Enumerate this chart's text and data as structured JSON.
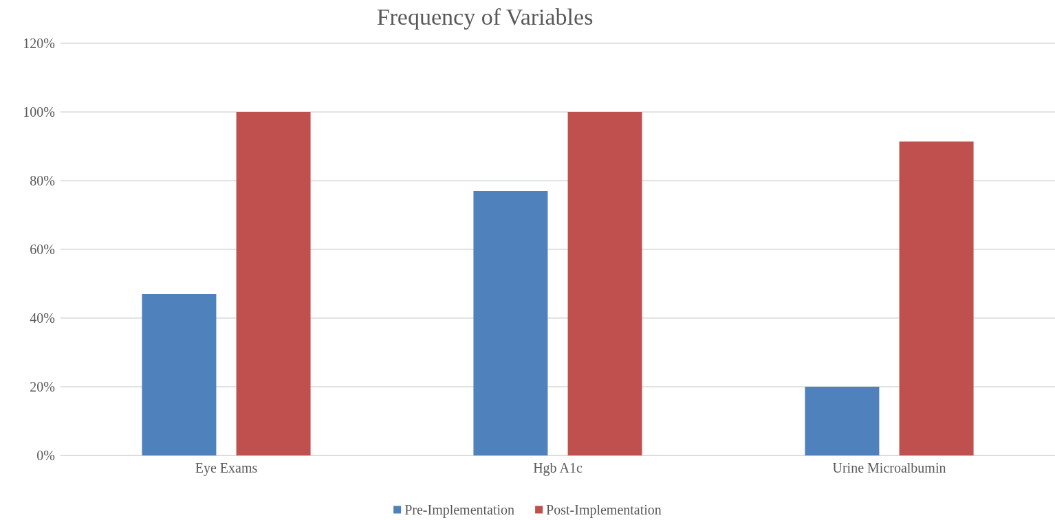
{
  "chart_data": {
    "type": "bar",
    "title": "Frequency of Variables",
    "categories": [
      "Eye Exams",
      "Hgb A1c",
      "Urine Microalbumin"
    ],
    "series": [
      {
        "name": "Pre-Implementation",
        "color": "#4f81bd",
        "values": [
          47,
          77,
          20
        ]
      },
      {
        "name": "Post-Implementation",
        "color": "#c0504d",
        "values": [
          100,
          100,
          91.4
        ]
      }
    ],
    "ylim": [
      0,
      120
    ],
    "yticks": [
      {
        "value": 0,
        "label": "0%"
      },
      {
        "value": 20,
        "label": "20%"
      },
      {
        "value": 40,
        "label": "40%"
      },
      {
        "value": 60,
        "label": "60%"
      },
      {
        "value": 80,
        "label": "80%"
      },
      {
        "value": 100,
        "label": "100%"
      },
      {
        "value": 120,
        "label": "120%"
      }
    ],
    "grid": "y",
    "legend": "bottom"
  }
}
